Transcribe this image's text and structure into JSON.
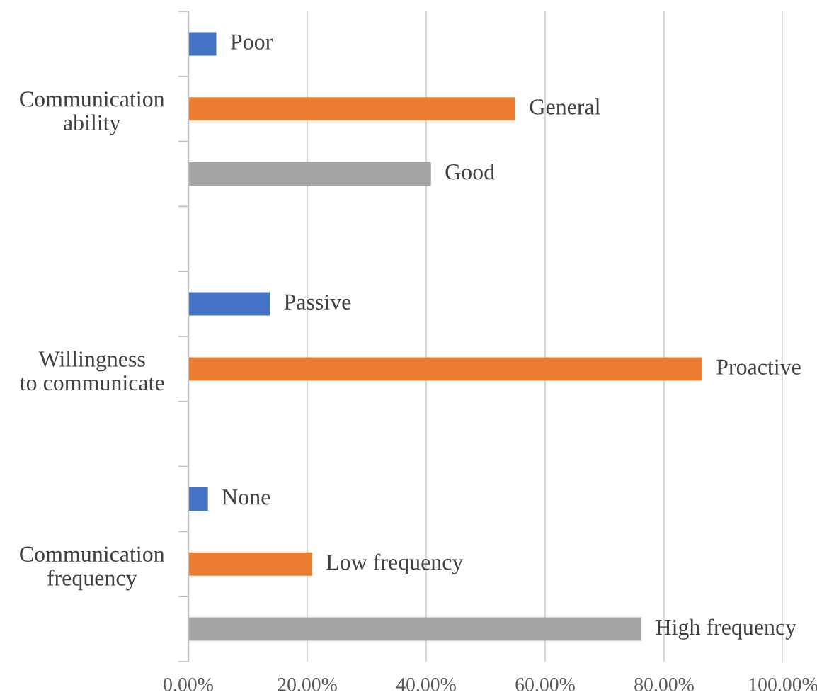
{
  "chart_data": {
    "type": "bar",
    "orientation": "horizontal",
    "categories": [
      null,
      "Communication ability",
      null,
      null,
      null,
      "Willingness to communicate",
      null,
      null,
      "Communication frequency",
      null
    ],
    "values": [
      4.7,
      55.0,
      40.8,
      null,
      13.7,
      86.4,
      null,
      3.3,
      20.8,
      76.2
    ],
    "colors": [
      "#4472c4",
      "#ed7d31",
      "#a5a5a5",
      "#a5a5a5",
      "#4472c4",
      "#ed7d31",
      "#a5a5a5",
      "#4472c4",
      "#ed7d31",
      "#a5a5a5"
    ],
    "value_labels": [
      "Poor",
      "General",
      "Good",
      null,
      "Passive",
      "Proactive",
      null,
      "None",
      "Low frequency",
      "High frequency"
    ],
    "xlim": [
      0,
      100
    ],
    "xticks": [
      {
        "value": 0,
        "label": "0.00%"
      },
      {
        "value": 20,
        "label": "20.00%"
      },
      {
        "value": 40,
        "label": "40.00%"
      },
      {
        "value": 60,
        "label": "60.00%"
      },
      {
        "value": 80,
        "label": "80.00%"
      },
      {
        "value": 100,
        "label": "100.00%"
      }
    ],
    "grid": "x"
  }
}
